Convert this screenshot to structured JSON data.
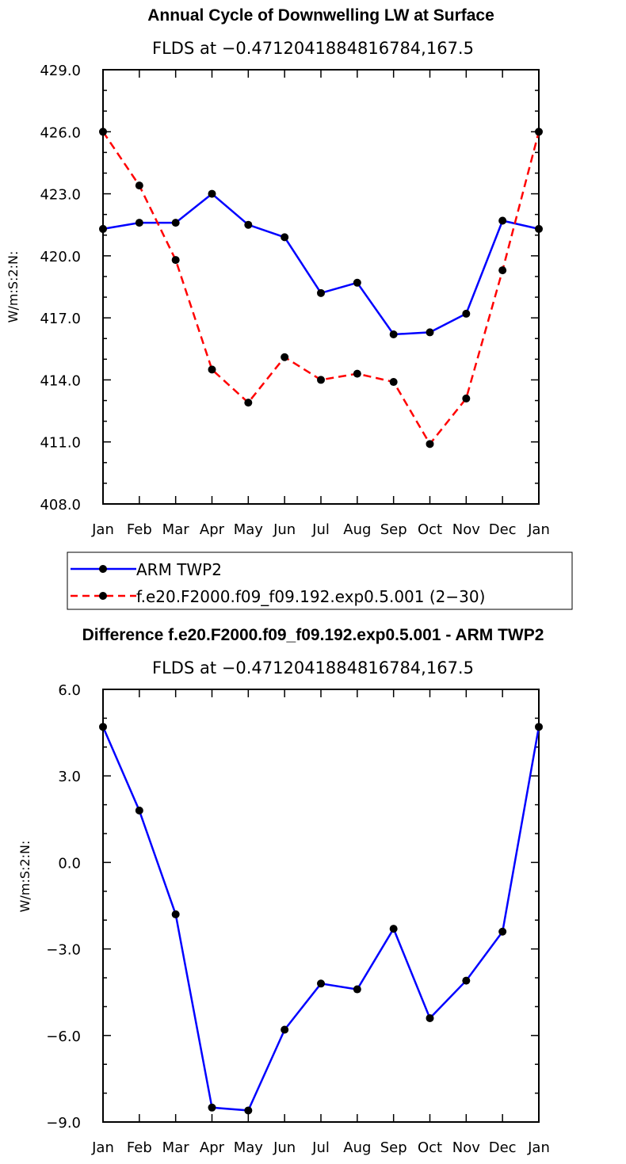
{
  "chart_data": [
    {
      "type": "line",
      "title": "Annual Cycle of Downwelling LW at Surface",
      "subtitle": "FLDS at −0.4712041884816784,167.5",
      "ylabel": "W/m:S:2:N:",
      "ylim": [
        408.0,
        429.0
      ],
      "yticks": [
        "408.0",
        "411.0",
        "414.0",
        "417.0",
        "420.0",
        "423.0",
        "426.0",
        "429.0"
      ],
      "ytick_values": [
        408,
        411,
        414,
        417,
        420,
        423,
        426,
        429
      ],
      "categories": [
        "Jan",
        "Feb",
        "Mar",
        "Apr",
        "May",
        "Jun",
        "Jul",
        "Aug",
        "Sep",
        "Oct",
        "Nov",
        "Dec",
        "Jan"
      ],
      "series": [
        {
          "name": "ARM TWP2",
          "color": "#0000ff",
          "style": "solid",
          "values": [
            421.3,
            421.6,
            421.6,
            423.0,
            421.5,
            420.9,
            418.2,
            418.7,
            416.2,
            416.3,
            417.2,
            421.7,
            421.3
          ]
        },
        {
          "name": "f.e20.F2000.f09_f09.192.exp0.5.001 (2−30)",
          "color": "#ff0000",
          "style": "dashed",
          "values": [
            426.0,
            423.4,
            419.8,
            414.5,
            412.9,
            415.1,
            414.0,
            414.3,
            413.9,
            410.9,
            413.1,
            419.3,
            426.0
          ]
        }
      ]
    },
    {
      "type": "line",
      "title": "Difference f.e20.F2000.f09_f09.192.exp0.5.001 - ARM TWP2",
      "subtitle": "FLDS at −0.4712041884816784,167.5",
      "ylabel": "W/m:S:2:N:",
      "ylim": [
        -9.0,
        6.0
      ],
      "yticks": [
        "−9.0",
        "−6.0",
        "−3.0",
        "0.0",
        "3.0",
        "6.0"
      ],
      "ytick_values": [
        -9,
        -6,
        -3,
        0,
        3,
        6
      ],
      "categories": [
        "Jan",
        "Feb",
        "Mar",
        "Apr",
        "May",
        "Jun",
        "Jul",
        "Aug",
        "Sep",
        "Oct",
        "Nov",
        "Dec",
        "Jan"
      ],
      "series": [
        {
          "name": "Difference",
          "color": "#0000ff",
          "style": "solid",
          "values": [
            4.7,
            1.8,
            -1.8,
            -8.5,
            -8.6,
            -5.8,
            -4.2,
            -4.4,
            -2.3,
            -5.4,
            -4.1,
            -2.4,
            4.7
          ]
        }
      ]
    }
  ]
}
